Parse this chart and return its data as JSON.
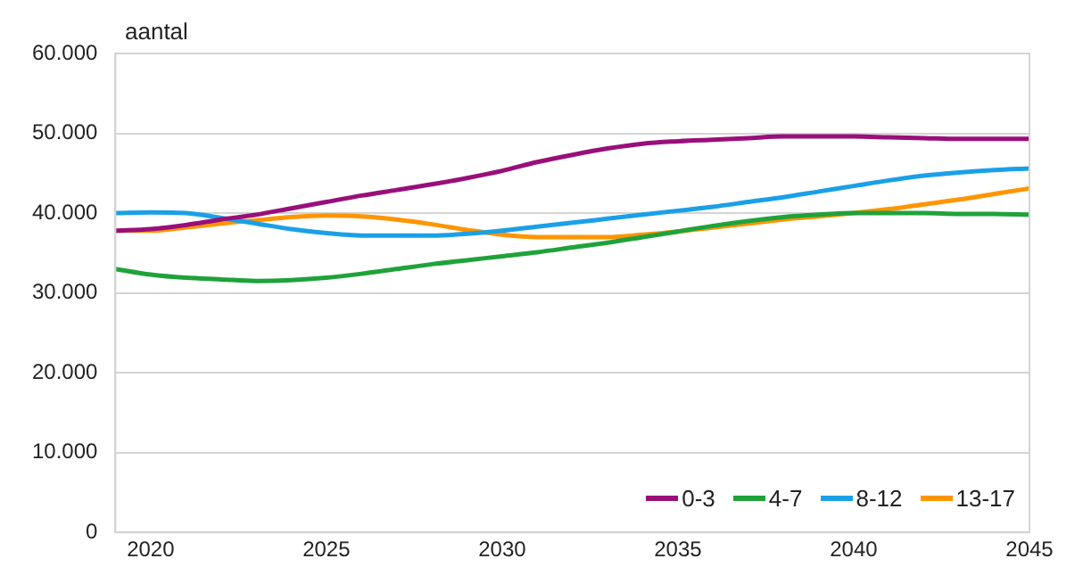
{
  "chart_data": {
    "type": "line",
    "ylabel": "aantal",
    "x": [
      2019,
      2020,
      2021,
      2022,
      2023,
      2024,
      2025,
      2026,
      2027,
      2028,
      2029,
      2030,
      2031,
      2032,
      2033,
      2034,
      2035,
      2036,
      2037,
      2038,
      2039,
      2040,
      2041,
      2042,
      2043,
      2044,
      2045
    ],
    "series": [
      {
        "name": "0-3",
        "color": "#990f7a",
        "values": [
          37800,
          38000,
          38500,
          39200,
          39800,
          40600,
          41400,
          42200,
          42900,
          43600,
          44400,
          45300,
          46400,
          47300,
          48100,
          48700,
          49000,
          49200,
          49400,
          49600,
          49600,
          49600,
          49500,
          49400,
          49300,
          49300,
          49300
        ]
      },
      {
        "name": "4-7",
        "color": "#1fa23a",
        "values": [
          33000,
          32300,
          31900,
          31700,
          31500,
          31600,
          31900,
          32400,
          33000,
          33600,
          34100,
          34600,
          35100,
          35700,
          36300,
          37000,
          37700,
          38400,
          39000,
          39500,
          39800,
          40000,
          40000,
          40000,
          39900,
          39900,
          39800
        ]
      },
      {
        "name": "8-12",
        "color": "#1aa0e6",
        "values": [
          40000,
          40100,
          40000,
          39400,
          38700,
          38000,
          37500,
          37200,
          37200,
          37200,
          37400,
          37800,
          38300,
          38800,
          39300,
          39800,
          40300,
          40800,
          41400,
          42000,
          42700,
          43400,
          44100,
          44700,
          45100,
          45400,
          45600
        ]
      },
      {
        "name": "13-17",
        "color": "#ff9500",
        "values": [
          37800,
          37800,
          38200,
          38700,
          39100,
          39500,
          39700,
          39600,
          39200,
          38600,
          37900,
          37300,
          37000,
          37000,
          37000,
          37300,
          37700,
          38200,
          38700,
          39200,
          39600,
          40000,
          40500,
          41100,
          41700,
          42400,
          43100
        ]
      }
    ],
    "xlim": [
      2019,
      2045
    ],
    "xticks": [
      2020,
      2025,
      2030,
      2035,
      2040,
      2045
    ],
    "ylim": [
      0,
      60000
    ],
    "yticks": [
      0,
      {
        "value": 10000,
        "label": "10.000"
      },
      {
        "value": 20000,
        "label": "20.000"
      },
      {
        "value": 30000,
        "label": "30.000"
      },
      {
        "value": 40000,
        "label": "40.000"
      },
      {
        "value": 50000,
        "label": "50.000"
      },
      {
        "value": 60000,
        "label": "60.000"
      }
    ],
    "grid": "y",
    "legend": "bottom right",
    "marker": "none",
    "line_style": "solid"
  }
}
